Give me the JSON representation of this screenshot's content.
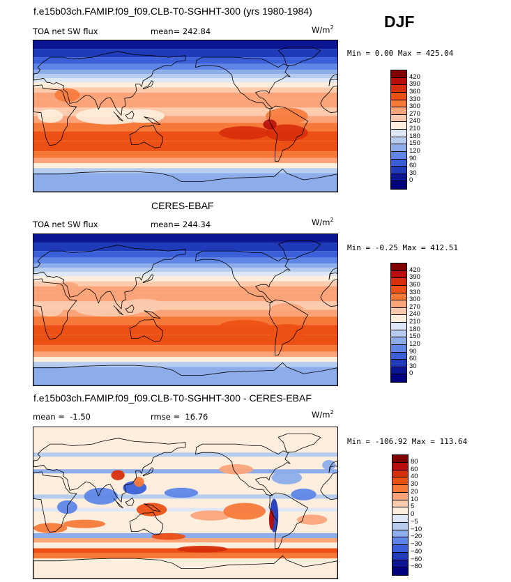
{
  "season": "DJF",
  "units_main": "W/m",
  "units_sup": "2",
  "panels": [
    {
      "title": "f.e15b03ch.FAMIP.f09_f09.CLB-T0-SGHHT-300 (yrs 1980-1984)",
      "variable": "TOA net SW flux",
      "stat1_label": "mean=",
      "stat1_value": "242.84",
      "minmax": "Min =   0.00 Max = 425.04",
      "kind": "model"
    },
    {
      "title": "CERES-EBAF",
      "variable": "TOA net SW flux",
      "stat1_label": "mean=",
      "stat1_value": "244.34",
      "minmax": "Min =  -0.25 Max = 412.51",
      "kind": "obs"
    },
    {
      "title": "f.e15b03ch.FAMIP.f09_f09.CLB-T0-SGHHT-300 - CERES-EBAF",
      "variable": "",
      "stat1_label": "mean =",
      "stat1_value": "-1.50",
      "stat2_label": "rmse =",
      "stat2_value": "16.76",
      "minmax": "Min = -106.92 Max = 113.64",
      "kind": "diff"
    }
  ],
  "chart_data": [
    {
      "type": "heatmap",
      "title": "f.e15b03ch.FAMIP.f09_f09.CLB-T0-SGHHT-300 (yrs 1980-1984)",
      "variable": "TOA net SW flux",
      "units": "W/m2",
      "mean": 242.84,
      "min": 0.0,
      "max": 425.04,
      "colorbar_levels": [
        420,
        390,
        360,
        330,
        300,
        270,
        240,
        210,
        180,
        150,
        120,
        90,
        60,
        30,
        0
      ],
      "colorbar_colors": [
        "#800000",
        "#b80d0b",
        "#d72e0b",
        "#ed5014",
        "#f7793a",
        "#fba47a",
        "#fccbae",
        "#fdeedd",
        "#dde7f6",
        "#b7cdf0",
        "#8cacea",
        "#5f86e6",
        "#3a5fd9",
        "#1f3bb9",
        "#0c1693",
        "#00007d"
      ]
    },
    {
      "type": "heatmap",
      "title": "CERES-EBAF",
      "variable": "TOA net SW flux",
      "units": "W/m2",
      "mean": 244.34,
      "min": -0.25,
      "max": 412.51,
      "colorbar_levels": [
        420,
        390,
        360,
        330,
        300,
        270,
        240,
        210,
        180,
        150,
        120,
        90,
        60,
        30,
        0
      ],
      "colorbar_colors": [
        "#800000",
        "#b80d0b",
        "#d72e0b",
        "#ed5014",
        "#f7793a",
        "#fba47a",
        "#fccbae",
        "#fdeedd",
        "#dde7f6",
        "#b7cdf0",
        "#8cacea",
        "#5f86e6",
        "#3a5fd9",
        "#1f3bb9",
        "#0c1693",
        "#00007d"
      ]
    },
    {
      "type": "heatmap",
      "title": "f.e15b03ch.FAMIP.f09_f09.CLB-T0-SGHHT-300 - CERES-EBAF",
      "units": "W/m2",
      "mean": -1.5,
      "rmse": 16.76,
      "min": -106.92,
      "max": 113.64,
      "colorbar_levels": [
        80,
        60,
        40,
        30,
        20,
        10,
        5,
        0,
        -5,
        -10,
        -20,
        -30,
        -40,
        -60,
        -80
      ],
      "colorbar_colors": [
        "#800000",
        "#b80d0b",
        "#d72e0b",
        "#ed5014",
        "#f7793a",
        "#fba47a",
        "#fccbae",
        "#fdeedd",
        "#dde7f6",
        "#b7cdf0",
        "#8cacea",
        "#5f86e6",
        "#3a5fd9",
        "#1f3bb9",
        "#0c1693",
        "#00007d"
      ]
    }
  ]
}
